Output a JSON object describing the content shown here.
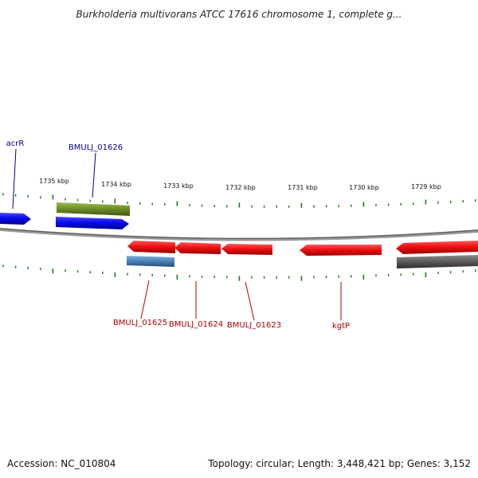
{
  "title": "Burkholderia multivorans ATCC 17616 chromosome 1, complete g...",
  "footer": {
    "accession": "Accession: NC_010804",
    "summary": "Topology: circular; Length: 3,448,421 bp; Genes: 3,152"
  },
  "colors": {
    "backbone": "#7d7d7d",
    "blue_gene": "#0a0aee",
    "olive_gene": "#6b8a26",
    "red_gene": "#ee1010",
    "steel_gene": "#4a7fb5",
    "gray_gene": "#5a5a5a",
    "tick": "#1a7a1a",
    "blue_label": "#00008b",
    "red_label": "#b00000"
  },
  "chart_data": {
    "type": "genome_map",
    "ruler_unit": "kbp",
    "ruler_ticks": [
      {
        "label": "1735 kbp",
        "x": 1735
      },
      {
        "label": "1734 kbp",
        "x": 1734
      },
      {
        "label": "1733 kbp",
        "x": 1733
      },
      {
        "label": "1732 kbp",
        "x": 1732
      },
      {
        "label": "1731 kbp",
        "x": 1731
      },
      {
        "label": "1730 kbp",
        "x": 1730
      },
      {
        "label": "1729 kbp",
        "x": 1729
      }
    ],
    "genes": [
      {
        "name": "acrR",
        "color": "blue",
        "strand": "+"
      },
      {
        "name": "BMULJ_01626",
        "color": "blue",
        "strand": "+"
      },
      {
        "name": "BMULJ_01625",
        "color": "red",
        "strand": "-"
      },
      {
        "name": "BMULJ_01624",
        "color": "red",
        "strand": "-"
      },
      {
        "name": "BMULJ_01623",
        "color": "red",
        "strand": "-"
      },
      {
        "name": "kgtP",
        "color": "red",
        "strand": "-"
      }
    ]
  }
}
